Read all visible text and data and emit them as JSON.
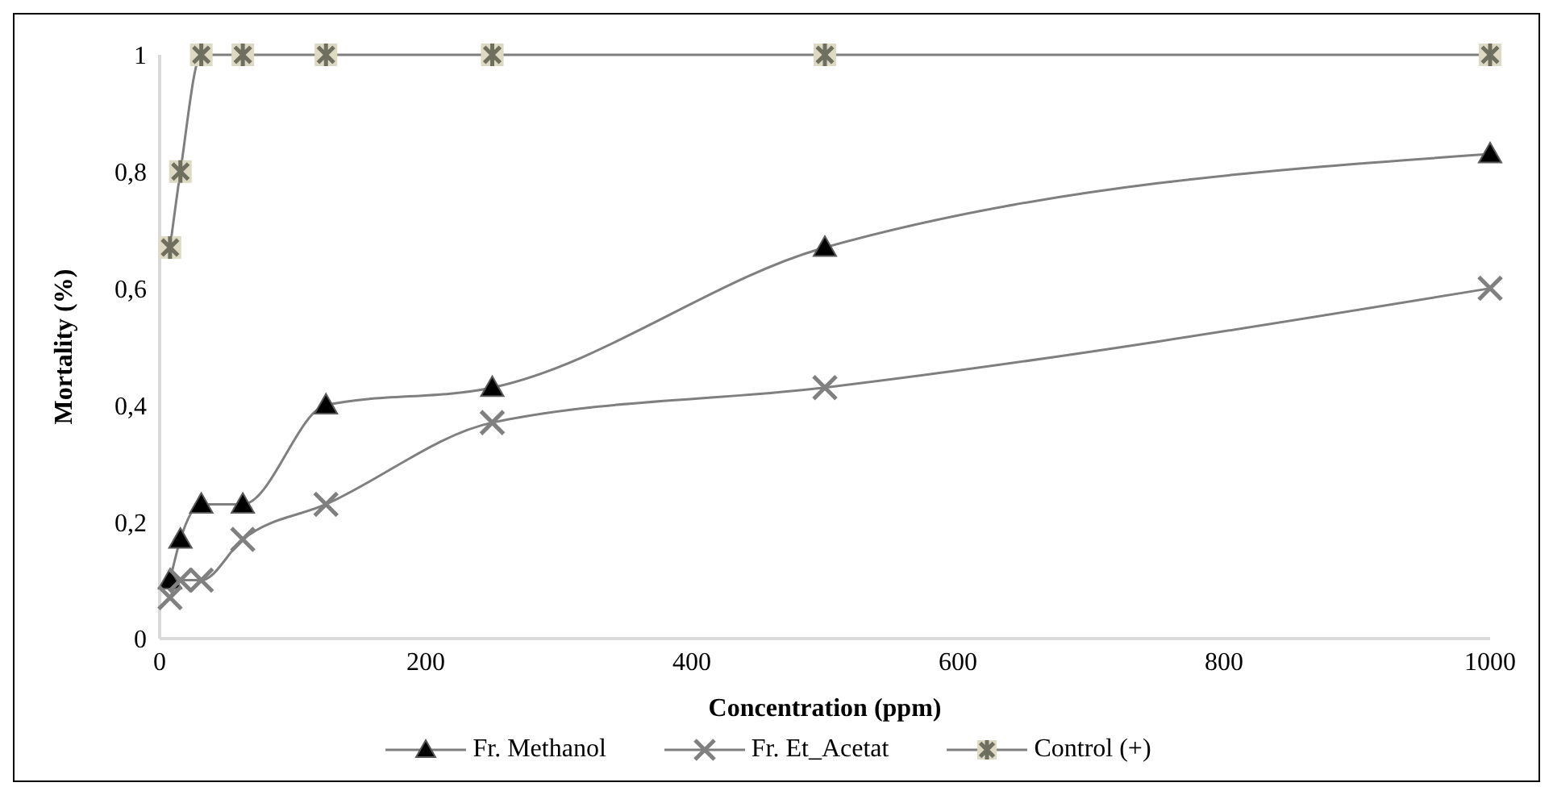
{
  "chart_data": {
    "type": "line",
    "xlabel": "Concentration (ppm)",
    "ylabel": "Mortality (%)",
    "xlim": [
      0,
      1000
    ],
    "xticks": [
      0,
      200,
      400,
      600,
      800,
      1000
    ],
    "ylim": [
      0,
      1
    ],
    "yticks": [
      0,
      {
        "value": 0.2,
        "label": "0,2"
      },
      {
        "value": 0.4,
        "label": "0,4"
      },
      {
        "value": 0.6,
        "label": "0,6"
      },
      {
        "value": 0.8,
        "label": "0,8"
      },
      1
    ],
    "legend": "bottom",
    "line_style": "solid",
    "series": [
      {
        "name": "Fr. Methanol",
        "color": "#000000",
        "marker": "triangle",
        "x": [
          7.8,
          15.6,
          31.3,
          62.5,
          125,
          250,
          500,
          1000
        ],
        "values": [
          0.1,
          0.17,
          0.23,
          0.23,
          0.4,
          0.43,
          0.67,
          0.83
        ]
      },
      {
        "name": "Fr. Et_Acetat",
        "color": "#808080",
        "marker": "cross",
        "x": [
          7.8,
          15.6,
          31.3,
          62.5,
          125,
          250,
          500,
          1000
        ],
        "values": [
          0.07,
          0.1,
          0.1,
          0.17,
          0.23,
          0.37,
          0.43,
          0.6
        ]
      },
      {
        "name": "Control (+)",
        "color": "#ddd9c3",
        "marker": "square",
        "x": [
          7.8,
          15.6,
          31.3,
          62.5,
          125,
          250,
          500,
          1000
        ],
        "values": [
          0.67,
          0.8,
          1,
          1,
          1,
          1,
          1,
          1
        ]
      }
    ]
  }
}
